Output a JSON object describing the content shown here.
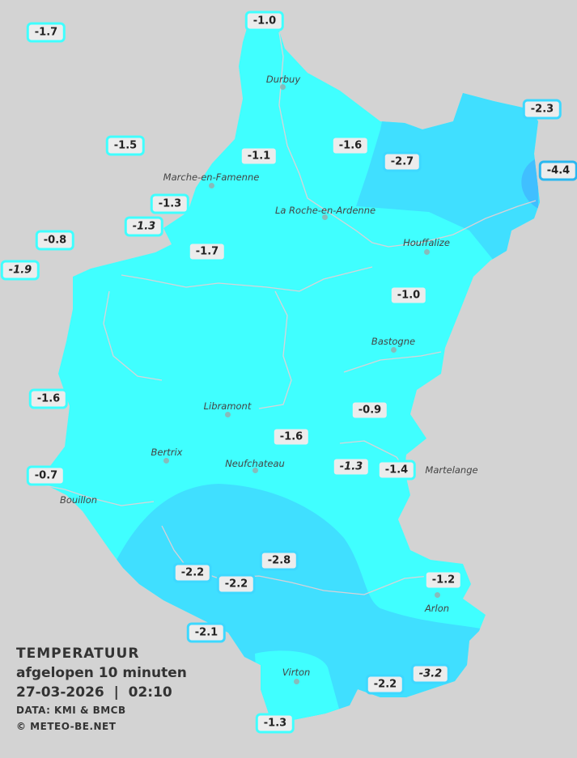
{
  "colors": {
    "background": "#d3d3d3",
    "zone_light": "#40ffff",
    "zone_mid": "#40dfff",
    "zone_cold": "#40bfff",
    "label_bg": "#ececec",
    "border_light": "#40ffff",
    "border_mid": "#3dd8ff",
    "border_cold": "#2ab8f0",
    "river": "#e8cfd4"
  },
  "legend": {
    "title": "TEMPERATUUR",
    "subtitle": "afgelopen 10 minuten",
    "datetime": "27-03-2026  |  02:10",
    "source": "DATA: KMI & BMCB",
    "copyright": "© METEO-BE.NET"
  },
  "towns": [
    "Durbuy",
    "Marche-en-Famenne",
    "La Roche-en-Ardenne",
    "Houffalize",
    "Bastogne",
    "Libramont",
    "Bertrix",
    "Neufchateau",
    "Martelange",
    "Bouillon",
    "Virton",
    "Arlon"
  ],
  "stations": [
    {
      "value": "-1.7",
      "italic": false,
      "level": "light"
    },
    {
      "value": "-1.0",
      "italic": false,
      "level": "light"
    },
    {
      "value": "-2.3",
      "italic": false,
      "level": "mid"
    },
    {
      "value": "-4.4",
      "italic": false,
      "level": "cold"
    },
    {
      "value": "-1.5",
      "italic": false,
      "level": "light"
    },
    {
      "value": "-1.1",
      "italic": false,
      "level": "light"
    },
    {
      "value": "-1.6",
      "italic": false,
      "level": "light"
    },
    {
      "value": "-2.7",
      "italic": false,
      "level": "mid"
    },
    {
      "value": "-1.3",
      "italic": false,
      "level": "light"
    },
    {
      "value": "-1.3",
      "italic": true,
      "level": "light"
    },
    {
      "value": "-0.8",
      "italic": false,
      "level": "light"
    },
    {
      "value": "-1.9",
      "italic": true,
      "level": "light"
    },
    {
      "value": "-1.7",
      "italic": false,
      "level": "light"
    },
    {
      "value": "-1.0",
      "italic": false,
      "level": "light"
    },
    {
      "value": "-1.6",
      "italic": false,
      "level": "light"
    },
    {
      "value": "-0.9",
      "italic": false,
      "level": "light"
    },
    {
      "value": "-1.6",
      "italic": false,
      "level": "light"
    },
    {
      "value": "-1.3",
      "italic": true,
      "level": "light"
    },
    {
      "value": "-1.4",
      "italic": false,
      "level": "light"
    },
    {
      "value": "-0.7",
      "italic": false,
      "level": "light"
    },
    {
      "value": "-2.8",
      "italic": false,
      "level": "mid"
    },
    {
      "value": "-2.2",
      "italic": false,
      "level": "mid"
    },
    {
      "value": "-2.2",
      "italic": false,
      "level": "mid"
    },
    {
      "value": "-1.2",
      "italic": false,
      "level": "light"
    },
    {
      "value": "-2.1",
      "italic": false,
      "level": "mid"
    },
    {
      "value": "-2.2",
      "italic": false,
      "level": "mid"
    },
    {
      "value": "-3.2",
      "italic": true,
      "level": "mid"
    },
    {
      "value": "-1.3",
      "italic": false,
      "level": "light"
    }
  ]
}
